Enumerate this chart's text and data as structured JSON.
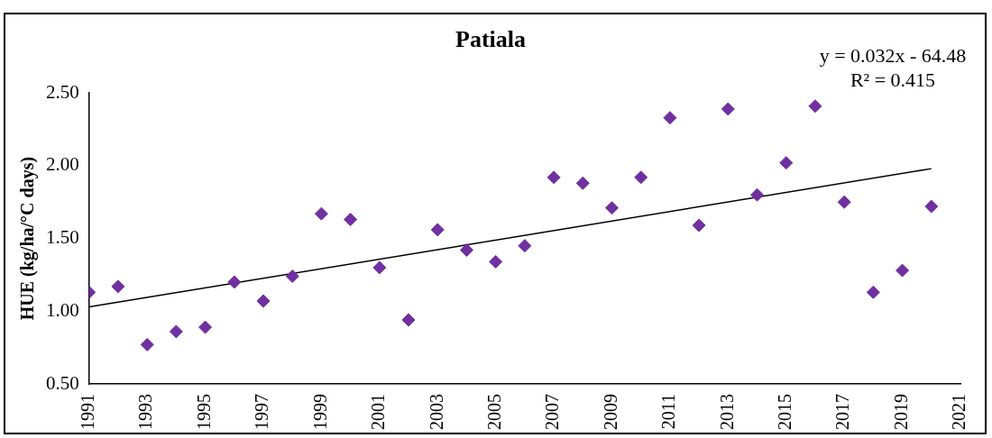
{
  "chart_data": {
    "type": "scatter",
    "title": "Patiala",
    "ylabel": "HUE (kg/ha/°C days)",
    "x": [
      1991,
      1992,
      1993,
      1994,
      1995,
      1996,
      1997,
      1998,
      1999,
      2000,
      2001,
      2002,
      2003,
      2004,
      2005,
      2006,
      2007,
      2008,
      2009,
      2010,
      2011,
      2012,
      2013,
      2014,
      2015,
      2016,
      2017,
      2018,
      2019,
      2020
    ],
    "series": [
      {
        "color": "#7030a0",
        "marker": "diamond",
        "values": [
          1.13,
          1.17,
          0.77,
          0.86,
          0.89,
          1.2,
          1.07,
          1.24,
          1.67,
          1.63,
          1.3,
          0.94,
          1.56,
          1.42,
          1.34,
          1.45,
          1.92,
          1.88,
          1.71,
          1.92,
          2.33,
          1.59,
          2.39,
          1.8,
          2.02,
          2.41,
          1.75,
          1.13,
          1.28,
          1.72
        ]
      },
      {
        "type": "line",
        "marker": "none",
        "color": "#000000",
        "x": [
          1991,
          2020
        ],
        "values": [
          1.03,
          1.98
        ]
      }
    ],
    "xlim": [
      1991,
      2021
    ],
    "xticks": [
      1991,
      1993,
      1995,
      1997,
      1999,
      2001,
      2003,
      2005,
      2007,
      2009,
      2011,
      2013,
      2015,
      2017,
      2019,
      2021
    ],
    "ylim": [
      0.5,
      2.5
    ],
    "yticks": [
      {
        "value": 0.5,
        "label": "0.50"
      },
      {
        "value": 1,
        "label": "1.00"
      },
      {
        "value": 1.5,
        "label": "1.50"
      },
      {
        "value": 2,
        "label": "2.00"
      },
      {
        "value": 2.5,
        "label": "2.50"
      }
    ],
    "annotations": [
      "y = 0.032x - 64.48",
      "R² = 0.415"
    ],
    "line_style": "solid",
    "grid": false,
    "legend": false
  }
}
